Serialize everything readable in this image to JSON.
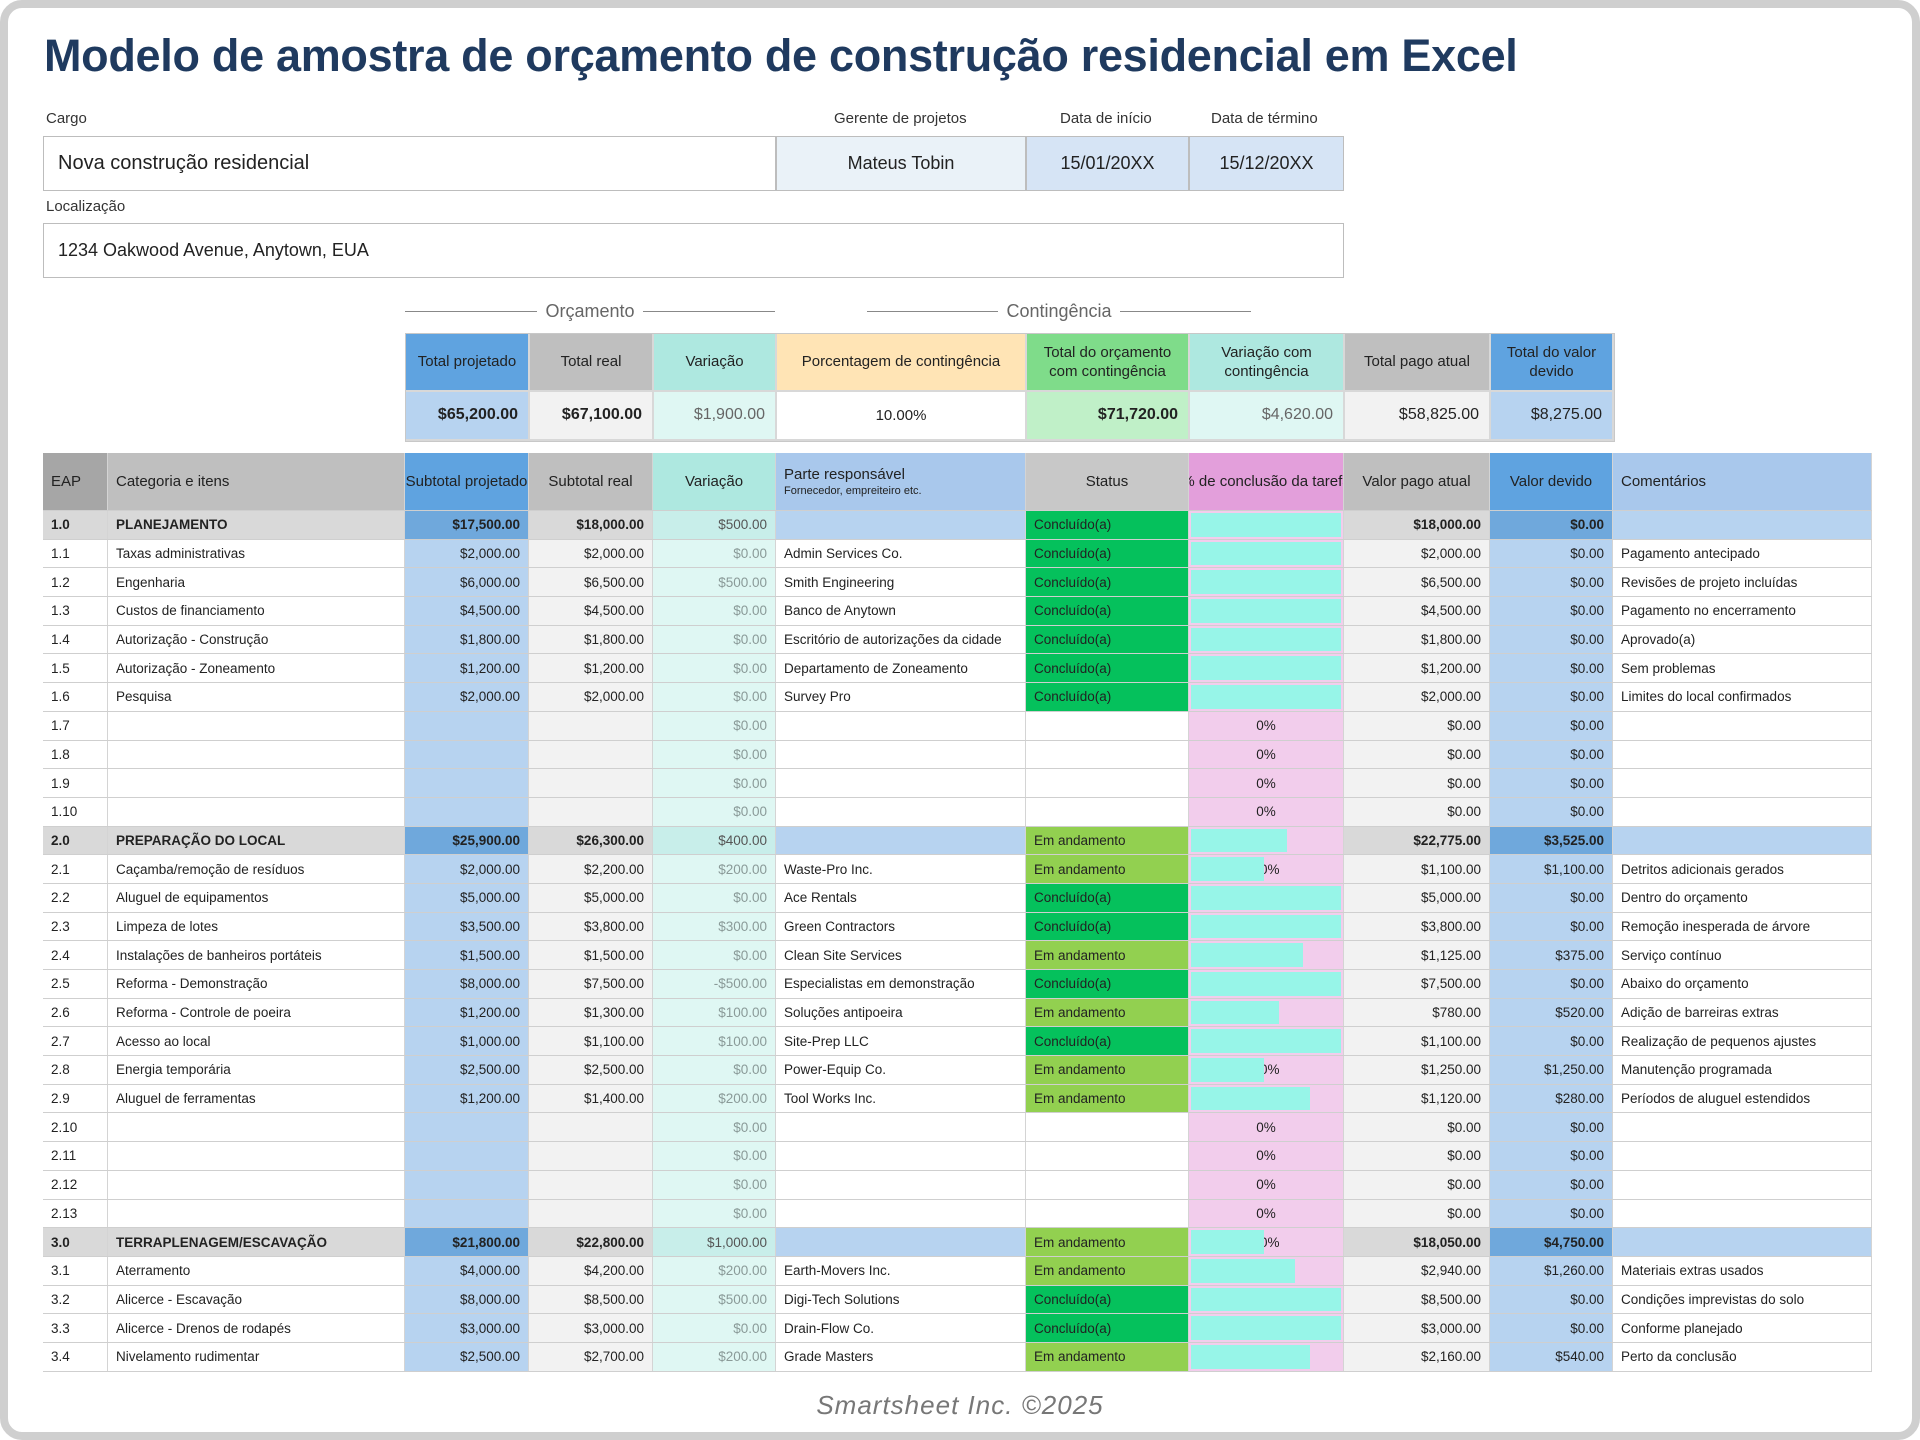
{
  "title": "Modelo de amostra de orçamento de construção residencial em Excel",
  "info": {
    "cargo_label": "Cargo",
    "cargo": "Nova construção residencial",
    "manager_label": "Gerente de projetos",
    "manager": "Mateus Tobin",
    "start_label": "Data de início",
    "start": "15/01/20XX",
    "end_label": "Data de término",
    "end": "15/12/20XX",
    "location_label": "Localização",
    "location": "1234 Oakwood Avenue, Anytown, EUA"
  },
  "sections": {
    "budget": "Orçamento",
    "contingency": "Contingência"
  },
  "summary": {
    "headers": [
      "Total projetado",
      "Total real",
      "Variação",
      "Porcentagem de contingência",
      "Total do orçamento com contingência",
      "Variação com contingência",
      "Total pago atual",
      "Total do valor devido"
    ],
    "values": [
      "$65,200.00",
      "$67,100.00",
      "$1,900.00",
      "10.00%",
      "$71,720.00",
      "$4,620.00",
      "$58,825.00",
      "$8,275.00"
    ]
  },
  "columns": {
    "eap": "EAP",
    "item": "Categoria e itens",
    "proj": "Subtotal projetado",
    "real": "Subtotal real",
    "var": "Variação",
    "party": "Parte responsável",
    "party_sub": "Fornecedor, empreiteiro etc.",
    "status": "Status",
    "pct": "% de conclusão da tarefa",
    "paid": "Valor pago atual",
    "owed": "Valor devido",
    "comment": "Comentários"
  },
  "colors": {
    "done": "#05c15c",
    "in_progress": "#92d050",
    "bar": "#97f5e8",
    "title": "#1f3a5f"
  },
  "rows": [
    {
      "section": true,
      "eap": "1.0",
      "item": "PLANEJAMENTO",
      "proj": "$17,500.00",
      "real": "$18,000.00",
      "var": "$500.00",
      "party": "",
      "status": "Concluído(a)",
      "pct": "100%",
      "paid": "$18,000.00",
      "owed": "$0.00",
      "comment": ""
    },
    {
      "eap": "1.1",
      "item": "Taxas administrativas",
      "proj": "$2,000.00",
      "real": "$2,000.00",
      "var": "$0.00",
      "party": "Admin Services Co.",
      "status": "Concluído(a)",
      "pct": "100%",
      "paid": "$2,000.00",
      "owed": "$0.00",
      "comment": "Pagamento antecipado"
    },
    {
      "eap": "1.2",
      "item": "Engenharia",
      "proj": "$6,000.00",
      "real": "$6,500.00",
      "var": "$500.00",
      "party": "Smith Engineering",
      "status": "Concluído(a)",
      "pct": "100%",
      "paid": "$6,500.00",
      "owed": "$0.00",
      "comment": "Revisões de projeto incluídas"
    },
    {
      "eap": "1.3",
      "item": "Custos de financiamento",
      "proj": "$4,500.00",
      "real": "$4,500.00",
      "var": "$0.00",
      "party": "Banco de Anytown",
      "status": "Concluído(a)",
      "pct": "100%",
      "paid": "$4,500.00",
      "owed": "$0.00",
      "comment": "Pagamento no encerramento"
    },
    {
      "eap": "1.4",
      "item": "Autorização - Construção",
      "proj": "$1,800.00",
      "real": "$1,800.00",
      "var": "$0.00",
      "party": "Escritório de autorizações da cidade",
      "status": "Concluído(a)",
      "pct": "100%",
      "paid": "$1,800.00",
      "owed": "$0.00",
      "comment": "Aprovado(a)"
    },
    {
      "eap": "1.5",
      "item": "Autorização - Zoneamento",
      "proj": "$1,200.00",
      "real": "$1,200.00",
      "var": "$0.00",
      "party": "Departamento de Zoneamento",
      "status": "Concluído(a)",
      "pct": "100%",
      "paid": "$1,200.00",
      "owed": "$0.00",
      "comment": "Sem problemas"
    },
    {
      "eap": "1.6",
      "item": "Pesquisa",
      "proj": "$2,000.00",
      "real": "$2,000.00",
      "var": "$0.00",
      "party": "Survey Pro",
      "status": "Concluído(a)",
      "pct": "100%",
      "paid": "$2,000.00",
      "owed": "$0.00",
      "comment": "Limites do local confirmados"
    },
    {
      "eap": "1.7",
      "item": "",
      "proj": "",
      "real": "",
      "var": "$0.00",
      "party": "",
      "status": "",
      "pct": "0%",
      "paid": "$0.00",
      "owed": "$0.00",
      "comment": ""
    },
    {
      "eap": "1.8",
      "item": "",
      "proj": "",
      "real": "",
      "var": "$0.00",
      "party": "",
      "status": "",
      "pct": "0%",
      "paid": "$0.00",
      "owed": "$0.00",
      "comment": ""
    },
    {
      "eap": "1.9",
      "item": "",
      "proj": "",
      "real": "",
      "var": "$0.00",
      "party": "",
      "status": "",
      "pct": "0%",
      "paid": "$0.00",
      "owed": "$0.00",
      "comment": ""
    },
    {
      "eap": "1.10",
      "item": "",
      "proj": "",
      "real": "",
      "var": "$0.00",
      "party": "",
      "status": "",
      "pct": "0%",
      "paid": "$0.00",
      "owed": "$0.00",
      "comment": ""
    },
    {
      "section": true,
      "eap": "2.0",
      "item": "PREPARAÇÃO DO LOCAL",
      "proj": "$25,900.00",
      "real": "$26,300.00",
      "var": "$400.00",
      "party": "",
      "status": "Em andamento",
      "pct": "65%",
      "paid": "$22,775.00",
      "owed": "$3,525.00",
      "comment": ""
    },
    {
      "eap": "2.1",
      "item": "Caçamba/remoção de resíduos",
      "proj": "$2,000.00",
      "real": "$2,200.00",
      "var": "$200.00",
      "party": "Waste-Pro Inc.",
      "status": "Em andamento",
      "pct": "50%",
      "paid": "$1,100.00",
      "owed": "$1,100.00",
      "comment": "Detritos adicionais gerados"
    },
    {
      "eap": "2.2",
      "item": "Aluguel de equipamentos",
      "proj": "$5,000.00",
      "real": "$5,000.00",
      "var": "$0.00",
      "party": "Ace Rentals",
      "status": "Concluído(a)",
      "pct": "100%",
      "paid": "$5,000.00",
      "owed": "$0.00",
      "comment": "Dentro do orçamento"
    },
    {
      "eap": "2.3",
      "item": "Limpeza de lotes",
      "proj": "$3,500.00",
      "real": "$3,800.00",
      "var": "$300.00",
      "party": "Green Contractors",
      "status": "Concluído(a)",
      "pct": "100%",
      "paid": "$3,800.00",
      "owed": "$0.00",
      "comment": "Remoção inesperada de árvore"
    },
    {
      "eap": "2.4",
      "item": "Instalações de banheiros portáteis",
      "proj": "$1,500.00",
      "real": "$1,500.00",
      "var": "$0.00",
      "party": "Clean Site Services",
      "status": "Em andamento",
      "pct": "75%",
      "paid": "$1,125.00",
      "owed": "$375.00",
      "comment": "Serviço contínuo"
    },
    {
      "eap": "2.5",
      "item": "Reforma - Demonstração",
      "proj": "$8,000.00",
      "real": "$7,500.00",
      "var": "-$500.00",
      "party": "Especialistas em demonstração",
      "status": "Concluído(a)",
      "pct": "100%",
      "paid": "$7,500.00",
      "owed": "$0.00",
      "comment": "Abaixo do orçamento"
    },
    {
      "eap": "2.6",
      "item": "Reforma - Controle de poeira",
      "proj": "$1,200.00",
      "real": "$1,300.00",
      "var": "$100.00",
      "party": "Soluções antipoeira",
      "status": "Em andamento",
      "pct": "60%",
      "paid": "$780.00",
      "owed": "$520.00",
      "comment": "Adição de barreiras extras"
    },
    {
      "eap": "2.7",
      "item": "Acesso ao local",
      "proj": "$1,000.00",
      "real": "$1,100.00",
      "var": "$100.00",
      "party": "Site-Prep LLC",
      "status": "Concluído(a)",
      "pct": "100%",
      "paid": "$1,100.00",
      "owed": "$0.00",
      "comment": "Realização de pequenos ajustes"
    },
    {
      "eap": "2.8",
      "item": "Energia temporária",
      "proj": "$2,500.00",
      "real": "$2,500.00",
      "var": "$0.00",
      "party": "Power-Equip Co.",
      "status": "Em andamento",
      "pct": "50%",
      "paid": "$1,250.00",
      "owed": "$1,250.00",
      "comment": "Manutenção programada"
    },
    {
      "eap": "2.9",
      "item": "Aluguel de ferramentas",
      "proj": "$1,200.00",
      "real": "$1,400.00",
      "var": "$200.00",
      "party": "Tool Works Inc.",
      "status": "Em andamento",
      "pct": "80%",
      "paid": "$1,120.00",
      "owed": "$280.00",
      "comment": "Períodos de aluguel estendidos"
    },
    {
      "eap": "2.10",
      "item": "",
      "proj": "",
      "real": "",
      "var": "$0.00",
      "party": "",
      "status": "",
      "pct": "0%",
      "paid": "$0.00",
      "owed": "$0.00",
      "comment": ""
    },
    {
      "eap": "2.11",
      "item": "",
      "proj": "",
      "real": "",
      "var": "$0.00",
      "party": "",
      "status": "",
      "pct": "0%",
      "paid": "$0.00",
      "owed": "$0.00",
      "comment": ""
    },
    {
      "eap": "2.12",
      "item": "",
      "proj": "",
      "real": "",
      "var": "$0.00",
      "party": "",
      "status": "",
      "pct": "0%",
      "paid": "$0.00",
      "owed": "$0.00",
      "comment": ""
    },
    {
      "eap": "2.13",
      "item": "",
      "proj": "",
      "real": "",
      "var": "$0.00",
      "party": "",
      "status": "",
      "pct": "0%",
      "paid": "$0.00",
      "owed": "$0.00",
      "comment": ""
    },
    {
      "section": true,
      "eap": "3.0",
      "item": "TERRAPLENAGEM/ESCAVAÇÃO",
      "proj": "$21,800.00",
      "real": "$22,800.00",
      "var": "$1,000.00",
      "party": "",
      "status": "Em andamento",
      "pct": "50%",
      "paid": "$18,050.00",
      "owed": "$4,750.00",
      "comment": ""
    },
    {
      "eap": "3.1",
      "item": "Aterramento",
      "proj": "$4,000.00",
      "real": "$4,200.00",
      "var": "$200.00",
      "party": "Earth-Movers Inc.",
      "status": "Em andamento",
      "pct": "70%",
      "paid": "$2,940.00",
      "owed": "$1,260.00",
      "comment": "Materiais extras usados"
    },
    {
      "eap": "3.2",
      "item": "Alicerce - Escavação",
      "proj": "$8,000.00",
      "real": "$8,500.00",
      "var": "$500.00",
      "party": "Digi-Tech Solutions",
      "status": "Concluído(a)",
      "pct": "100%",
      "paid": "$8,500.00",
      "owed": "$0.00",
      "comment": "Condições imprevistas do solo"
    },
    {
      "eap": "3.3",
      "item": "Alicerce - Drenos de rodapés",
      "proj": "$3,000.00",
      "real": "$3,000.00",
      "var": "$0.00",
      "party": "Drain-Flow Co.",
      "status": "Concluído(a)",
      "pct": "100%",
      "paid": "$3,000.00",
      "owed": "$0.00",
      "comment": "Conforme planejado"
    },
    {
      "eap": "3.4",
      "item": "Nivelamento rudimentar",
      "proj": "$2,500.00",
      "real": "$2,700.00",
      "var": "$200.00",
      "party": "Grade Masters",
      "status": "Em andamento",
      "pct": "80%",
      "paid": "$2,160.00",
      "owed": "$540.00",
      "comment": "Perto da conclusão"
    }
  ],
  "footer": "Smartsheet Inc. ©2025"
}
